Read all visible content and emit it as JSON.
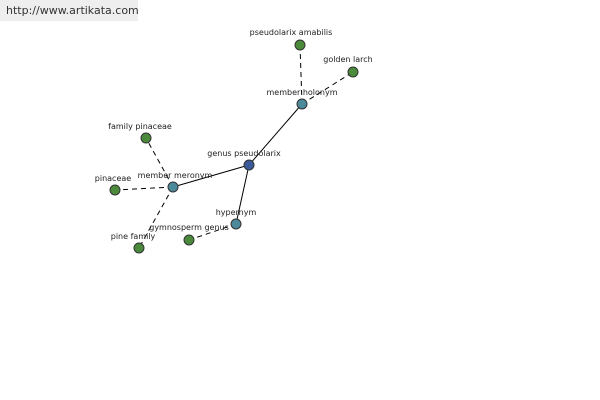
{
  "header": {
    "url": "http://www.artikata.com"
  },
  "nodes": [
    {
      "label": "genus pseudolarix"
    },
    {
      "label": "member holonym"
    },
    {
      "label": "pseudolarix amabilis"
    },
    {
      "label": "golden larch"
    },
    {
      "label": "member meronym"
    },
    {
      "label": "family pinaceae"
    },
    {
      "label": "pinaceae"
    },
    {
      "label": "pine family"
    },
    {
      "label": "hypernym"
    },
    {
      "label": "gymnosperm genus"
    }
  ]
}
